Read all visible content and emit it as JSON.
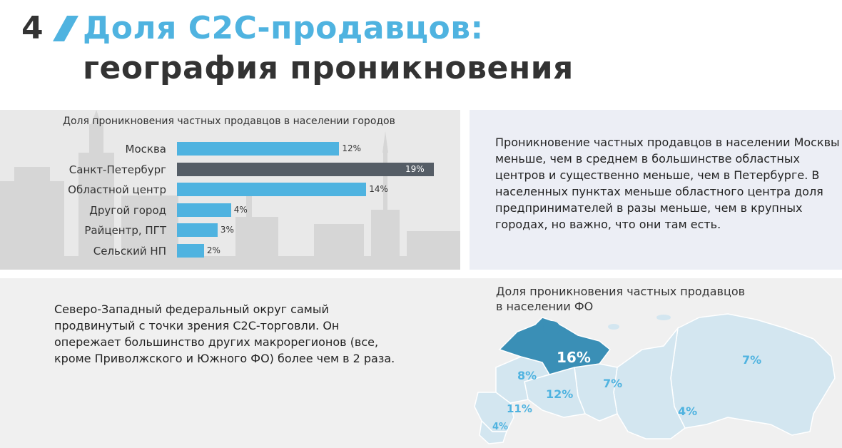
{
  "header": {
    "number": "4",
    "title_line1": "Доля С2С-продавцов:",
    "title_line2": "география проникновения"
  },
  "colors": {
    "accent_blue": "#4fb3e0",
    "dark_bar": "#555d66",
    "map_highlight": "#3a8fb6",
    "map_light": "#d3e6f0"
  },
  "chart_data": {
    "type": "bar",
    "orientation": "horizontal",
    "title": "Доля проникновения частных продавцов в населении городов",
    "categories": [
      "Москва",
      "Санкт-Петербург",
      "Областной центр",
      "Другой город",
      "Райцентр,  ПГТ",
      "Сельский НП"
    ],
    "values": [
      12,
      19,
      14,
      4,
      3,
      2
    ],
    "value_labels": [
      "12%",
      "19%",
      "14%",
      "4%",
      "3%",
      "2%"
    ],
    "highlight_index": 1,
    "xlim": [
      0,
      19
    ]
  },
  "right_text": "Проникновение частных продавцов в населении Москвы меньше, чем в среднем в большинстве областных центров и существенно меньше, чем в Петербурге. В населенных пунктах меньше областного центра доля предпринимателей в разы меньше, чем в крупных городах, но важно, что они там есть.",
  "bottom_text": "Северо-Западный федеральный округ самый продвинутый с точки зрения С2С-торговли. Он опережает большинство других макрорегионов (все, кроме Приволжского и Южного ФО) более чем в 2 раза.",
  "map": {
    "title_line1": "Доля проникновения частных продавцов",
    "title_line2": "в населении ФО",
    "labels": [
      "16%",
      "8%",
      "7%",
      "12%",
      "11%",
      "4%",
      "7%",
      "4%"
    ]
  }
}
